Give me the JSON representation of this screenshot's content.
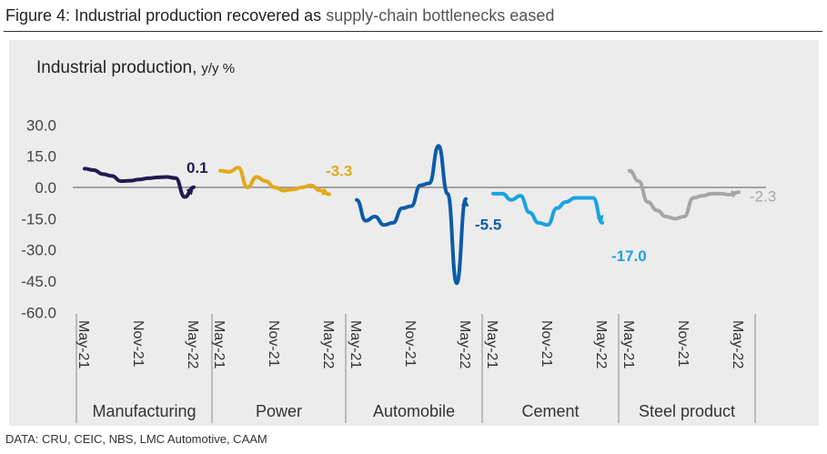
{
  "title": {
    "main": "Figure 4: Industrial production recovered as ",
    "highlight": "supply-chain bottlenecks eased"
  },
  "source": "DATA: CRU, CEIC, NBS, LMC Automotive, CAAM",
  "chart_data": {
    "type": "line",
    "title": "Industrial production,",
    "unit": "y/y %",
    "ylim": [
      -60,
      30
    ],
    "yticks": [
      "30.0",
      "15.0",
      "0.0",
      "-15.0",
      "-30.0",
      "-45.0",
      "-60.0"
    ],
    "xtick_labels": [
      "May-21",
      "Nov-21",
      "May-22"
    ],
    "grid": false,
    "series": [
      {
        "name": "Manufacturing",
        "color": "#1f1a4f",
        "label": "0.1",
        "values": [
          9,
          8.3,
          6.4,
          5.5,
          3,
          3.2,
          3.8,
          4.4,
          4.8,
          5,
          4.5,
          -4.6,
          0.1
        ]
      },
      {
        "name": "Power",
        "color": "#e0aa1a",
        "label": "-3.3",
        "values": [
          8,
          7.5,
          9.5,
          0,
          5,
          3,
          0,
          -1.5,
          -1,
          0,
          1,
          -1.5,
          -3.3
        ]
      },
      {
        "name": "Automobile",
        "color": "#0b5ba8",
        "label": "-5.5",
        "values": [
          -6,
          -16,
          -14,
          -18,
          -17,
          -10,
          -9,
          1,
          2,
          20,
          -3,
          -46,
          -5.5
        ]
      },
      {
        "name": "Cement",
        "color": "#1aa2e0",
        "label": "-17.0",
        "values": [
          -3,
          -3,
          -6,
          -4,
          -12,
          -17,
          -18,
          -10,
          -7,
          -5,
          -5,
          -5,
          -17
        ]
      },
      {
        "name": "Steel product",
        "color": "#a6a6a6",
        "label": "-2.3",
        "values": [
          8,
          3,
          -7,
          -11,
          -14,
          -15,
          -14,
          -5,
          -4,
          -3,
          -3,
          -3.5,
          -2.3
        ]
      }
    ]
  }
}
